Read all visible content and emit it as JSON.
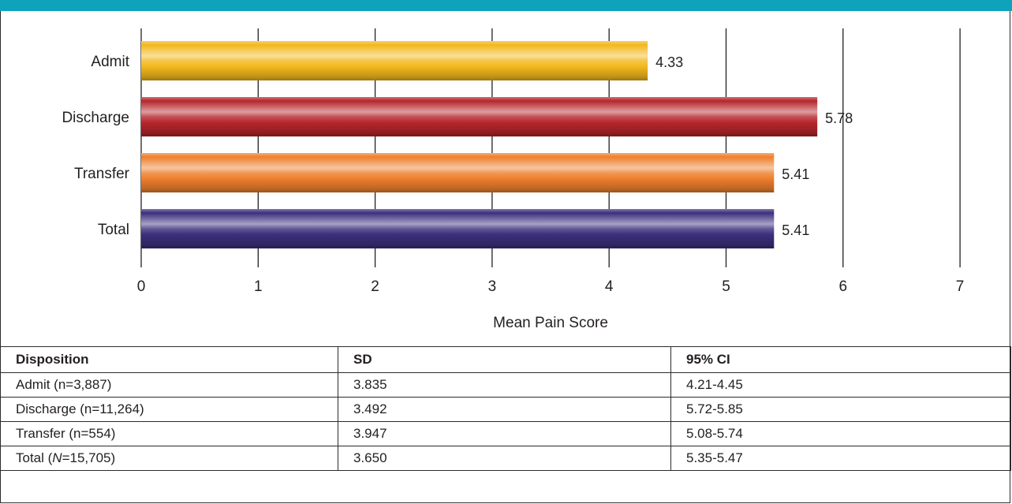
{
  "chart_data": {
    "type": "bar",
    "orientation": "horizontal",
    "categories": [
      "Admit",
      "Discharge",
      "Transfer",
      "Total"
    ],
    "values": [
      4.33,
      5.78,
      5.41,
      5.41
    ],
    "data_labels": [
      "4.33",
      "5.78",
      "5.41",
      "5.41"
    ],
    "colors": [
      "#f2b81c",
      "#b5262b",
      "#ee7f2d",
      "#3b2f7c"
    ],
    "xlabel": "Mean Pain Score",
    "ylabel": "",
    "xlim": [
      0,
      7
    ],
    "xticks": [
      "0",
      "1",
      "2",
      "3",
      "4",
      "5",
      "6",
      "7"
    ],
    "grid": "vertical",
    "legend": "none"
  },
  "table": {
    "headers": [
      "Disposition",
      "SD",
      "95% CI"
    ],
    "rows": [
      {
        "label": "Admit (n=3,887)",
        "sd": "3.835",
        "ci": "4.21-4.45"
      },
      {
        "label": "Discharge (n=11,264)",
        "sd": "3.492",
        "ci": "5.72-5.85"
      },
      {
        "label": "Transfer (n=554)",
        "sd": "3.947",
        "ci": "5.08-5.74"
      },
      {
        "label_prefix": "Total (",
        "label_n": "N",
        "label_suffix": "=15,705)",
        "sd": "3.650",
        "ci": "5.35-5.47"
      }
    ]
  }
}
